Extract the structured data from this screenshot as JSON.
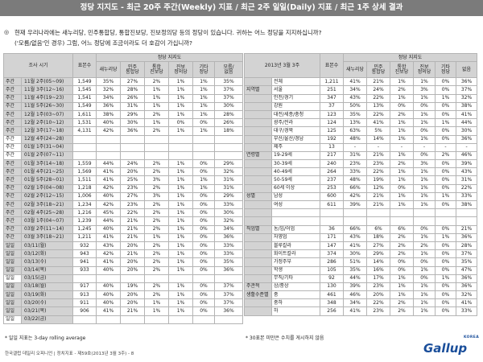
{
  "header": {
    "title": "정당 지지도 - 최근 20주 주간(Weekly) 지표 / 최근 2주 일일(Daily) 지표 / 최근 1주 상세 결과"
  },
  "question": {
    "marker": "◎",
    "line1": "현재 우리나라에는 새누리당, 민주통합당, 통합진보당, 진보정의당 등의 정당이 있습니다. 귀하는 어느 정당을 지지하십니까?",
    "line2": "('모름/없음'인 경우) 그럼, 어느 정당에 조금이라도 더 호감이 가십니까?"
  },
  "left_table": {
    "header": {
      "period": "조사 시기",
      "sample": "표본수",
      "party_label": "정당 지지도",
      "cols": [
        "새누리당",
        "민주\n통합당",
        "통합\n진보당",
        "진보\n정의당",
        "기타\n정당",
        "모름/\n없음"
      ]
    },
    "rows": [
      {
        "g": "주간",
        "p": "11월 2주(05~09)",
        "n": "1,549",
        "v": [
          "35%",
          "27%",
          "2%",
          "1%",
          "1%",
          "35%"
        ]
      },
      {
        "g": "주간",
        "p": "11월 3주(12~16)",
        "n": "1,545",
        "v": [
          "32%",
          "28%",
          "1%",
          "1%",
          "1%",
          "37%"
        ]
      },
      {
        "g": "주간",
        "p": "11월 4주(19~23)",
        "n": "1,541",
        "v": [
          "34%",
          "26%",
          "1%",
          "1%",
          "1%",
          "37%"
        ]
      },
      {
        "g": "주간",
        "p": "11월 5주(26~30)",
        "n": "1,549",
        "v": [
          "36%",
          "31%",
          "1%",
          "1%",
          "1%",
          "30%"
        ]
      },
      {
        "g": "주간",
        "p": "12월 1주(03~07)",
        "n": "1,611",
        "v": [
          "38%",
          "29%",
          "2%",
          "1%",
          "1%",
          "28%"
        ]
      },
      {
        "g": "주간",
        "p": "12월 2주(10~12)",
        "n": "1,531",
        "v": [
          "40%",
          "30%",
          "1%",
          "0%",
          "0%",
          "26%"
        ]
      },
      {
        "g": "주간",
        "p": "12월 3주(17~18)",
        "n": "4,131",
        "v": [
          "42%",
          "36%",
          "2%",
          "1%",
          "1%",
          "18%"
        ]
      },
      {
        "g": "주간",
        "p": "12월 4주(24~28)",
        "n": "",
        "v": [
          "",
          "",
          "",
          "",
          "",
          ""
        ]
      },
      {
        "g": "주간",
        "p": "01월 1주(31~04)",
        "n": "",
        "v": [
          "",
          "",
          "",
          "",
          "",
          ""
        ]
      },
      {
        "g": "주간",
        "p": "01월 2주(07~11)",
        "n": "",
        "v": [
          "",
          "",
          "",
          "",
          "",
          ""
        ]
      },
      {
        "g": "주간",
        "p": "01월 3주(14~18)",
        "n": "1,559",
        "v": [
          "44%",
          "24%",
          "2%",
          "1%",
          "0%",
          "29%"
        ]
      },
      {
        "g": "주간",
        "p": "01월 4주(21~25)",
        "n": "1,569",
        "v": [
          "41%",
          "20%",
          "2%",
          "1%",
          "0%",
          "32%"
        ]
      },
      {
        "g": "주간",
        "p": "01월 5주(28~01)",
        "n": "1,511",
        "v": [
          "41%",
          "25%",
          "3%",
          "1%",
          "1%",
          "31%"
        ]
      },
      {
        "g": "주간",
        "p": "02월 1주(04~08)",
        "n": "1,218",
        "v": [
          "42%",
          "23%",
          "2%",
          "1%",
          "1%",
          "31%"
        ]
      },
      {
        "g": "주간",
        "p": "02월 2주(12~15)",
        "n": "1,006",
        "v": [
          "40%",
          "27%",
          "3%",
          "1%",
          "0%",
          "29%"
        ]
      },
      {
        "g": "주간",
        "p": "02월 3주(18~21)",
        "n": "1,234",
        "v": [
          "42%",
          "23%",
          "2%",
          "1%",
          "0%",
          "33%"
        ]
      },
      {
        "g": "주간",
        "p": "02월 4주(25~28)",
        "n": "1,216",
        "v": [
          "45%",
          "22%",
          "2%",
          "1%",
          "0%",
          "30%"
        ]
      },
      {
        "g": "주간",
        "p": "03월 1주(04~07)",
        "n": "1,239",
        "v": [
          "44%",
          "21%",
          "2%",
          "1%",
          "0%",
          "32%"
        ]
      },
      {
        "g": "주간",
        "p": "03월 2주(11~14)",
        "n": "1,245",
        "v": [
          "40%",
          "21%",
          "2%",
          "1%",
          "0%",
          "34%"
        ]
      },
      {
        "g": "주간",
        "p": "03월 3주(18~21)",
        "n": "1,211",
        "v": [
          "41%",
          "21%",
          "1%",
          "1%",
          "0%",
          "36%"
        ]
      },
      {
        "g": "일일",
        "p": "03/11(월)",
        "n": "932",
        "v": [
          "43%",
          "20%",
          "2%",
          "1%",
          "0%",
          "33%"
        ]
      },
      {
        "g": "일일",
        "p": "03/12(화)",
        "n": "943",
        "v": [
          "42%",
          "21%",
          "2%",
          "1%",
          "0%",
          "33%"
        ]
      },
      {
        "g": "일일",
        "p": "03/13(수)",
        "n": "941",
        "v": [
          "41%",
          "20%",
          "2%",
          "1%",
          "0%",
          "35%"
        ]
      },
      {
        "g": "일일",
        "p": "03/14(목)",
        "n": "933",
        "v": [
          "40%",
          "20%",
          "2%",
          "1%",
          "0%",
          "36%"
        ]
      },
      {
        "g": "일일",
        "p": "03/15(금)",
        "n": "",
        "v": [
          "",
          "",
          "",
          "",
          "",
          ""
        ]
      },
      {
        "g": "일일",
        "p": "03/18(월)",
        "n": "917",
        "v": [
          "40%",
          "19%",
          "2%",
          "1%",
          "0%",
          "37%"
        ]
      },
      {
        "g": "일일",
        "p": "03/19(화)",
        "n": "913",
        "v": [
          "40%",
          "20%",
          "2%",
          "1%",
          "0%",
          "37%"
        ]
      },
      {
        "g": "일일",
        "p": "03/20(수)",
        "n": "911",
        "v": [
          "40%",
          "20%",
          "1%",
          "1%",
          "0%",
          "37%"
        ]
      },
      {
        "g": "일일",
        "p": "03/21(목)",
        "n": "906",
        "v": [
          "41%",
          "21%",
          "1%",
          "1%",
          "0%",
          "36%"
        ]
      },
      {
        "g": "일일",
        "p": "03/22(금)",
        "n": "",
        "v": [
          "",
          "",
          "",
          "",
          "",
          ""
        ]
      }
    ],
    "note": "* 일일 지표는 3-day rolling average"
  },
  "right_table": {
    "header": {
      "period": "2013년 3월 3주",
      "sample": "표본수",
      "party_label": "정당 지지도",
      "cols": [
        "새누리당",
        "민주\n통합당",
        "통합\n진보당",
        "진보\n정의당",
        "기타\n정당",
        "없음"
      ]
    },
    "rows": [
      {
        "cat": "",
        "sub": "전체",
        "n": "1,211",
        "v": [
          "41%",
          "21%",
          "1%",
          "1%",
          "0%",
          "36%"
        ]
      },
      {
        "cat": "지역별",
        "sub": "서울",
        "n": "251",
        "v": [
          "34%",
          "24%",
          "2%",
          "3%",
          "0%",
          "37%"
        ]
      },
      {
        "cat": "",
        "sub": "인천/경기",
        "n": "347",
        "v": [
          "43%",
          "22%",
          "1%",
          "1%",
          "1%",
          "32%"
        ]
      },
      {
        "cat": "",
        "sub": "강원",
        "n": "37",
        "v": [
          "50%",
          "13%",
          "0%",
          "0%",
          "0%",
          "38%"
        ]
      },
      {
        "cat": "",
        "sub": "대전/세종/충청",
        "n": "123",
        "v": [
          "35%",
          "22%",
          "2%",
          "1%",
          "0%",
          "41%"
        ]
      },
      {
        "cat": "",
        "sub": "광주/전라",
        "n": "124",
        "v": [
          "13%",
          "41%",
          "1%",
          "1%",
          "1%",
          "44%"
        ]
      },
      {
        "cat": "",
        "sub": "대구/경북",
        "n": "125",
        "v": [
          "63%",
          "5%",
          "1%",
          "0%",
          "0%",
          "30%"
        ]
      },
      {
        "cat": "",
        "sub": "부산/울산/경남",
        "n": "192",
        "v": [
          "48%",
          "14%",
          "1%",
          "1%",
          "0%",
          "36%"
        ]
      },
      {
        "cat": "",
        "sub": "제주",
        "n": "13",
        "v": [
          "-",
          "-",
          "-",
          "-",
          "-",
          "-"
        ]
      },
      {
        "cat": "연령별",
        "sub": "19-29세",
        "n": "217",
        "v": [
          "31%",
          "21%",
          "1%",
          "0%",
          "2%",
          "46%"
        ]
      },
      {
        "cat": "",
        "sub": "30-39세",
        "n": "240",
        "v": [
          "23%",
          "23%",
          "2%",
          "3%",
          "0%",
          "39%"
        ]
      },
      {
        "cat": "",
        "sub": "40-49세",
        "n": "264",
        "v": [
          "33%",
          "22%",
          "1%",
          "1%",
          "0%",
          "43%"
        ]
      },
      {
        "cat": "",
        "sub": "50-59세",
        "n": "237",
        "v": [
          "48%",
          "19%",
          "1%",
          "1%",
          "0%",
          "31%"
        ]
      },
      {
        "cat": "",
        "sub": "60세 이상",
        "n": "253",
        "v": [
          "66%",
          "12%",
          "0%",
          "1%",
          "0%",
          "22%"
        ]
      },
      {
        "cat": "성별",
        "sub": "남성",
        "n": "600",
        "v": [
          "42%",
          "21%",
          "1%",
          "1%",
          "1%",
          "33%"
        ]
      },
      {
        "cat": "",
        "sub": "여성",
        "n": "611",
        "v": [
          "39%",
          "21%",
          "1%",
          "1%",
          "0%",
          "38%"
        ]
      },
      {
        "cat": "",
        "sub": "",
        "n": "",
        "v": [
          "",
          "",
          "",
          "",
          "",
          ""
        ]
      },
      {
        "cat": "",
        "sub": "",
        "n": "",
        "v": [
          "",
          "",
          "",
          "",
          "",
          ""
        ]
      },
      {
        "cat": "직업별",
        "sub": "농/임/어업",
        "n": "36",
        "v": [
          "66%",
          "6%",
          "6%",
          "0%",
          "0%",
          "21%"
        ]
      },
      {
        "cat": "",
        "sub": "자영업",
        "n": "171",
        "v": [
          "43%",
          "18%",
          "2%",
          "1%",
          "1%",
          "36%"
        ]
      },
      {
        "cat": "",
        "sub": "블루칼라",
        "n": "147",
        "v": [
          "41%",
          "27%",
          "2%",
          "2%",
          "0%",
          "28%"
        ]
      },
      {
        "cat": "",
        "sub": "화이트칼라",
        "n": "374",
        "v": [
          "30%",
          "29%",
          "2%",
          "1%",
          "0%",
          "37%"
        ]
      },
      {
        "cat": "",
        "sub": "가정주부",
        "n": "286",
        "v": [
          "51%",
          "14%",
          "0%",
          "0%",
          "0%",
          "35%"
        ]
      },
      {
        "cat": "",
        "sub": "학생",
        "n": "105",
        "v": [
          "35%",
          "16%",
          "0%",
          "1%",
          "0%",
          "47%"
        ]
      },
      {
        "cat": "",
        "sub": "무직/기타",
        "n": "92",
        "v": [
          "44%",
          "17%",
          "1%",
          "0%",
          "1%",
          "36%"
        ]
      },
      {
        "cat": "주관적",
        "sub": "상/중상",
        "n": "130",
        "v": [
          "39%",
          "23%",
          "1%",
          "1%",
          "0%",
          "36%"
        ]
      },
      {
        "cat": "생활수준별",
        "sub": "중",
        "n": "461",
        "v": [
          "46%",
          "20%",
          "1%",
          "1%",
          "0%",
          "32%"
        ]
      },
      {
        "cat": "",
        "sub": "중하",
        "n": "348",
        "v": [
          "34%",
          "22%",
          "2%",
          "1%",
          "0%",
          "41%"
        ]
      },
      {
        "cat": "",
        "sub": "하",
        "n": "256",
        "v": [
          "41%",
          "23%",
          "2%",
          "1%",
          "0%",
          "33%"
        ]
      }
    ],
    "note": "* 30표본 미만은 수치를 게시하지 않음"
  },
  "footer": {
    "text": "한국갤럽 데일리 오피니언 | 정치지표 - 제59호(2013년 3월 3주) - 8"
  },
  "logo": {
    "text": "Gallup",
    "korea": "KOREA"
  }
}
